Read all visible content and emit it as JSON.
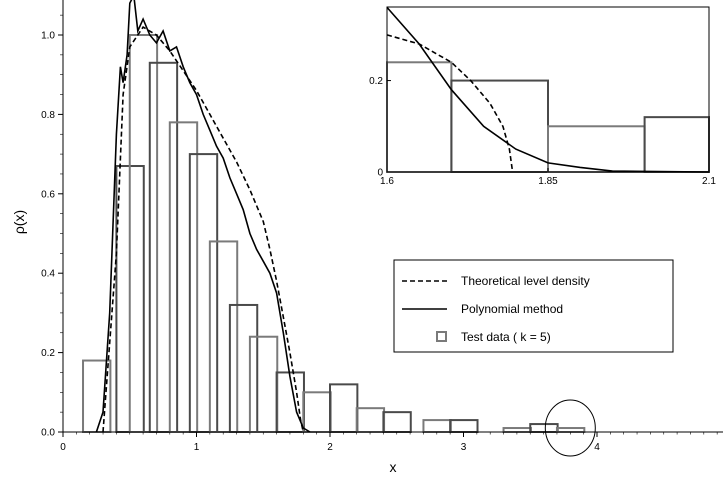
{
  "chart_data": [
    {
      "type": "bar",
      "role": "main",
      "xlabel": "x",
      "ylabel": "ρ(x)",
      "xlim": [
        0,
        5
      ],
      "ylim": [
        0,
        1.0
      ],
      "x_ticks": [
        "0",
        "1",
        "2",
        "3",
        "4"
      ],
      "y_ticks": [
        "0.0",
        "0.2",
        "0.4",
        "0.6",
        "0.8",
        "1.0"
      ],
      "series": [
        {
          "name": "Test data (k=5)",
          "type": "histogram",
          "bin_width": 0.25,
          "bins": [
            {
              "x0": 0.15,
              "value": 0.18
            },
            {
              "x0": 0.4,
              "value": 0.67
            },
            {
              "x0": 0.5,
              "value": 1.0
            },
            {
              "x0": 0.65,
              "value": 0.93
            },
            {
              "x0": 0.8,
              "value": 0.78
            },
            {
              "x0": 0.95,
              "value": 0.7
            },
            {
              "x0": 1.1,
              "value": 0.48
            },
            {
              "x0": 1.25,
              "value": 0.32
            },
            {
              "x0": 1.4,
              "value": 0.24
            },
            {
              "x0": 1.6,
              "value": 0.15
            },
            {
              "x0": 1.8,
              "value": 0.1
            },
            {
              "x0": 2.0,
              "value": 0.12
            },
            {
              "x0": 2.2,
              "value": 0.06
            },
            {
              "x0": 2.4,
              "value": 0.05
            },
            {
              "x0": 2.7,
              "value": 0.03
            },
            {
              "x0": 2.9,
              "value": 0.03
            },
            {
              "x0": 3.3,
              "value": 0.01
            },
            {
              "x0": 3.5,
              "value": 0.02
            },
            {
              "x0": 3.7,
              "value": 0.01
            }
          ]
        },
        {
          "name": "Theoretical level density",
          "type": "line",
          "style": "dashed",
          "points": [
            [
              0.3,
              0.0
            ],
            [
              0.4,
              0.45
            ],
            [
              0.45,
              0.85
            ],
            [
              0.5,
              0.97
            ],
            [
              0.6,
              1.02
            ],
            [
              0.7,
              1.0
            ],
            [
              0.8,
              0.96
            ],
            [
              0.9,
              0.91
            ],
            [
              1.0,
              0.86
            ],
            [
              1.1,
              0.8
            ],
            [
              1.2,
              0.74
            ],
            [
              1.3,
              0.68
            ],
            [
              1.4,
              0.61
            ],
            [
              1.5,
              0.53
            ],
            [
              1.55,
              0.46
            ],
            [
              1.6,
              0.38
            ],
            [
              1.65,
              0.29
            ],
            [
              1.7,
              0.2
            ],
            [
              1.75,
              0.1
            ],
            [
              1.78,
              0.03
            ],
            [
              1.8,
              0.0
            ]
          ]
        },
        {
          "name": "Polynomial method",
          "type": "line",
          "style": "solid",
          "points": [
            [
              0.25,
              0.0
            ],
            [
              0.3,
              0.05
            ],
            [
              0.35,
              0.3
            ],
            [
              0.4,
              0.75
            ],
            [
              0.43,
              0.92
            ],
            [
              0.45,
              0.88
            ],
            [
              0.48,
              0.95
            ],
            [
              0.5,
              1.08
            ],
            [
              0.53,
              1.1
            ],
            [
              0.56,
              1.01
            ],
            [
              0.6,
              1.04
            ],
            [
              0.65,
              1.0
            ],
            [
              0.7,
              0.98
            ],
            [
              0.75,
              1.01
            ],
            [
              0.8,
              0.96
            ],
            [
              0.85,
              0.97
            ],
            [
              0.9,
              0.92
            ],
            [
              0.95,
              0.88
            ],
            [
              1.0,
              0.85
            ],
            [
              1.05,
              0.8
            ],
            [
              1.1,
              0.76
            ],
            [
              1.15,
              0.72
            ],
            [
              1.2,
              0.69
            ],
            [
              1.25,
              0.64
            ],
            [
              1.3,
              0.6
            ],
            [
              1.35,
              0.56
            ],
            [
              1.4,
              0.5
            ],
            [
              1.45,
              0.46
            ],
            [
              1.5,
              0.43
            ],
            [
              1.55,
              0.4
            ],
            [
              1.6,
              0.35
            ],
            [
              1.65,
              0.25
            ],
            [
              1.7,
              0.14
            ],
            [
              1.75,
              0.05
            ],
            [
              1.8,
              0.01
            ],
            [
              1.85,
              0.0
            ]
          ]
        }
      ],
      "legend": {
        "placement": "center-right",
        "entries": [
          {
            "label": "Theoretical   level   density",
            "symbol": "dashed-line"
          },
          {
            "label": "Polynomial   method",
            "symbol": "solid-line"
          },
          {
            "label": "Test   data   ( k = 5)",
            "symbol": "square"
          }
        ]
      },
      "annotation": {
        "type": "circle",
        "center_x": 3.8,
        "center_y": 0.02,
        "description": "highlighted tail region"
      }
    },
    {
      "type": "bar",
      "role": "inset",
      "xlim": [
        1.6,
        2.1
      ],
      "ylim": [
        0,
        0.35
      ],
      "x_ticks": [
        "1.6",
        "1.85",
        "2.1"
      ],
      "y_ticks": [
        "0",
        "0.2"
      ],
      "series": [
        {
          "name": "Test data (k=5)",
          "type": "histogram",
          "bins": [
            {
              "x0": 1.6,
              "x1": 1.7,
              "value": 0.24
            },
            {
              "x0": 1.7,
              "x1": 1.85,
              "value": 0.2
            },
            {
              "x0": 1.85,
              "x1": 2.0,
              "value": 0.1
            },
            {
              "x0": 2.0,
              "x1": 2.1,
              "value": 0.12
            }
          ]
        },
        {
          "name": "Theoretical level density",
          "type": "line",
          "style": "dashed",
          "points": [
            [
              1.6,
              0.3
            ],
            [
              1.65,
              0.28
            ],
            [
              1.7,
              0.24
            ],
            [
              1.73,
              0.2
            ],
            [
              1.76,
              0.15
            ],
            [
              1.78,
              0.1
            ],
            [
              1.79,
              0.05
            ],
            [
              1.795,
              0.0
            ]
          ]
        },
        {
          "name": "Polynomial method",
          "type": "line",
          "style": "solid",
          "points": [
            [
              1.6,
              0.36
            ],
            [
              1.65,
              0.28
            ],
            [
              1.7,
              0.18
            ],
            [
              1.75,
              0.1
            ],
            [
              1.8,
              0.05
            ],
            [
              1.85,
              0.02
            ],
            [
              1.9,
              0.01
            ],
            [
              1.95,
              0.002
            ],
            [
              2.1,
              0.0
            ]
          ]
        }
      ]
    }
  ],
  "colors": {
    "background": "#ffffff",
    "line": "#000000",
    "histogram_dark": "#4a4a4a",
    "histogram_light": "#7a7a7a"
  }
}
